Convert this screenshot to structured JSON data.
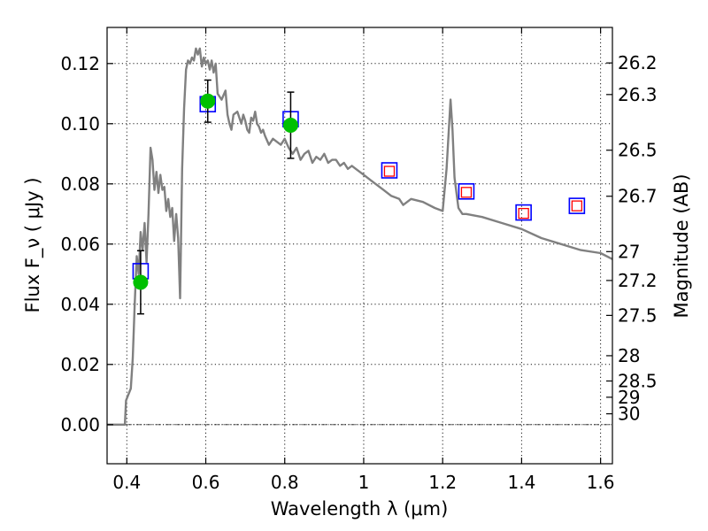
{
  "chart_data": {
    "type": "scatter",
    "title": "",
    "xlabel": "Wavelength  λ (μm)",
    "ylabel": "Flux  F_ν  ( μJy )",
    "ylabel_right": "Magnitude (AB)",
    "xlim": [
      0.35,
      1.63
    ],
    "ylim": [
      -0.013,
      0.132
    ],
    "grid": true,
    "x_ticks": [
      0.4,
      0.6,
      0.8,
      1.0,
      1.2,
      1.4,
      1.6
    ],
    "x_tick_labels": [
      "0.4",
      "0.6",
      "0.8",
      "1",
      "1.2",
      "1.4",
      "1.6"
    ],
    "y_ticks": [
      0.0,
      0.02,
      0.04,
      0.06,
      0.08,
      0.1,
      0.12
    ],
    "y_tick_labels": [
      "0.00",
      "0.02",
      "0.04",
      "0.06",
      "0.08",
      "0.10",
      "0.12"
    ],
    "right_ticks": [
      {
        "label": "26.2",
        "flux": 0.1202
      },
      {
        "label": "26.3",
        "flux": 0.1097
      },
      {
        "label": "26.5",
        "flux": 0.0912
      },
      {
        "label": "26.7",
        "flux": 0.0759
      },
      {
        "label": "27",
        "flux": 0.0575
      },
      {
        "label": "27.2",
        "flux": 0.0479
      },
      {
        "label": "27.5",
        "flux": 0.0363
      },
      {
        "label": "28",
        "flux": 0.0229
      },
      {
        "label": "28.5",
        "flux": 0.0145
      },
      {
        "label": "29",
        "flux": 0.0091
      },
      {
        "label": "30",
        "flux": 0.0036
      }
    ],
    "series": [
      {
        "type": "line",
        "color": "#808080",
        "x": [
          0.35,
          0.395,
          0.398,
          0.41,
          0.415,
          0.42,
          0.425,
          0.43,
          0.435,
          0.44,
          0.445,
          0.45,
          0.455,
          0.46,
          0.465,
          0.47,
          0.475,
          0.48,
          0.485,
          0.49,
          0.495,
          0.5,
          0.505,
          0.51,
          0.515,
          0.52,
          0.525,
          0.53,
          0.535,
          0.54,
          0.545,
          0.55,
          0.555,
          0.56,
          0.565,
          0.57,
          0.575,
          0.58,
          0.585,
          0.59,
          0.595,
          0.6,
          0.605,
          0.61,
          0.615,
          0.62,
          0.625,
          0.63,
          0.64,
          0.65,
          0.655,
          0.66,
          0.665,
          0.67,
          0.68,
          0.69,
          0.695,
          0.7,
          0.705,
          0.71,
          0.715,
          0.72,
          0.725,
          0.73,
          0.735,
          0.74,
          0.745,
          0.75,
          0.76,
          0.77,
          0.78,
          0.79,
          0.8,
          0.81,
          0.82,
          0.83,
          0.84,
          0.85,
          0.86,
          0.87,
          0.88,
          0.89,
          0.9,
          0.91,
          0.92,
          0.93,
          0.94,
          0.95,
          0.96,
          0.97,
          0.98,
          0.99,
          1.0,
          1.02,
          1.05,
          1.07,
          1.09,
          1.1,
          1.12,
          1.15,
          1.18,
          1.2,
          1.21,
          1.22,
          1.225,
          1.23,
          1.24,
          1.25,
          1.255,
          1.26,
          1.3,
          1.35,
          1.4,
          1.45,
          1.5,
          1.55,
          1.6,
          1.63
        ],
        "values": [
          0.0,
          0.0,
          0.008,
          0.012,
          0.022,
          0.04,
          0.056,
          0.05,
          0.064,
          0.058,
          0.067,
          0.054,
          0.07,
          0.092,
          0.088,
          0.078,
          0.084,
          0.077,
          0.083,
          0.078,
          0.079,
          0.071,
          0.075,
          0.069,
          0.072,
          0.061,
          0.07,
          0.062,
          0.042,
          0.085,
          0.105,
          0.118,
          0.121,
          0.12,
          0.122,
          0.121,
          0.125,
          0.123,
          0.125,
          0.119,
          0.122,
          0.12,
          0.121,
          0.118,
          0.121,
          0.117,
          0.12,
          0.11,
          0.108,
          0.111,
          0.103,
          0.1,
          0.098,
          0.103,
          0.104,
          0.1,
          0.103,
          0.101,
          0.098,
          0.097,
          0.102,
          0.101,
          0.104,
          0.1,
          0.099,
          0.097,
          0.098,
          0.096,
          0.093,
          0.095,
          0.094,
          0.093,
          0.095,
          0.092,
          0.09,
          0.092,
          0.088,
          0.09,
          0.091,
          0.087,
          0.089,
          0.088,
          0.09,
          0.087,
          0.088,
          0.088,
          0.086,
          0.087,
          0.085,
          0.086,
          0.085,
          0.084,
          0.083,
          0.081,
          0.078,
          0.076,
          0.075,
          0.073,
          0.075,
          0.074,
          0.072,
          0.071,
          0.085,
          0.108,
          0.098,
          0.082,
          0.072,
          0.07,
          0.07,
          0.07,
          0.069,
          0.067,
          0.065,
          0.062,
          0.06,
          0.058,
          0.057,
          0.055
        ]
      },
      {
        "type": "errorbar-points",
        "marker": "circle",
        "color": "#00c000",
        "x": [
          0.435,
          0.605,
          0.815
        ],
        "values": [
          0.0473,
          0.1075,
          0.0995
        ],
        "errors": [
          0.0105,
          0.007,
          0.011
        ]
      },
      {
        "type": "points",
        "marker": "square-open",
        "color": "#0000ff",
        "x": [
          0.435,
          0.605,
          0.815,
          1.065,
          1.26,
          1.405,
          1.54
        ],
        "values": [
          0.051,
          0.1065,
          0.1015,
          0.0845,
          0.0775,
          0.0705,
          0.0727
        ]
      },
      {
        "type": "points",
        "marker": "square-open-small",
        "color": "#ff0000",
        "x": [
          1.065,
          1.26,
          1.405,
          1.54
        ],
        "values": [
          0.0842,
          0.0772,
          0.0702,
          0.0727
        ]
      }
    ]
  }
}
